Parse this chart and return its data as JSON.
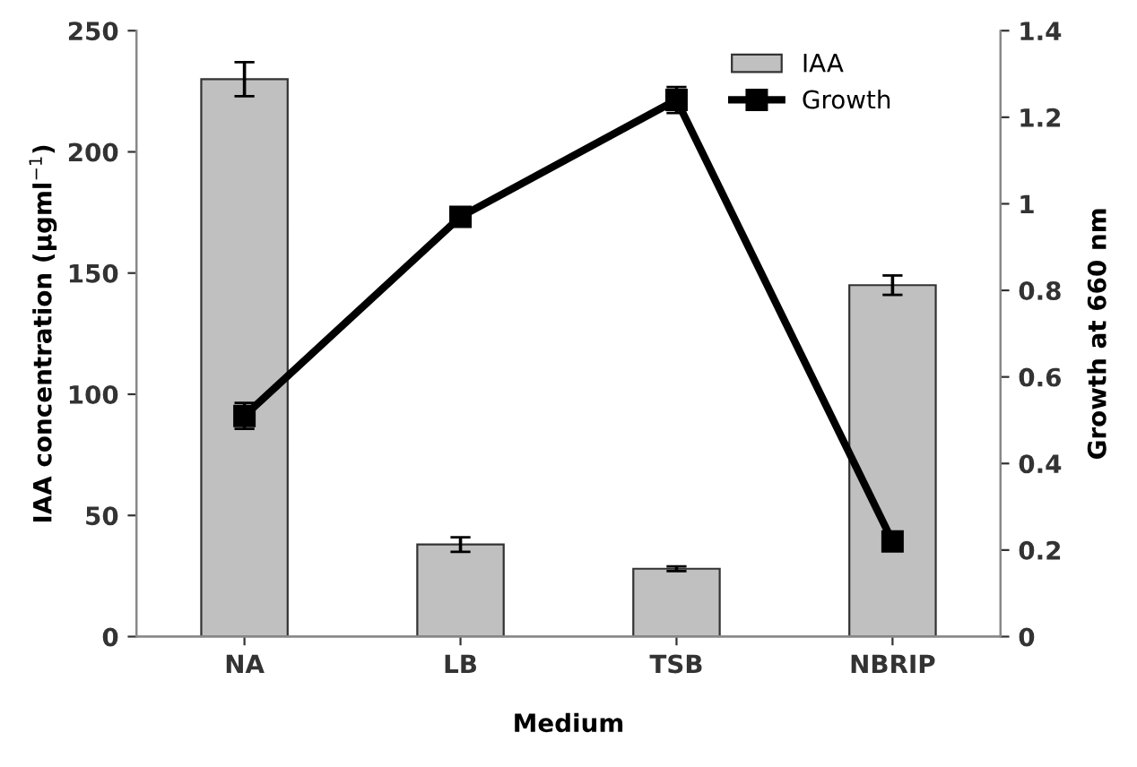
{
  "chart_data": {
    "type": "bar",
    "xlabel": "Medium",
    "ylabel": "IAA concentration (µgml$^{−1}$)",
    "y2label": "Growth at 660 nm",
    "categories": [
      "NA",
      "LB",
      "TSB",
      "NBRIP"
    ],
    "series": [
      {
        "name": "IAA",
        "color": "#c0c0c0",
        "values": [
          230,
          38,
          28,
          145
        ],
        "errors": [
          7,
          3,
          1,
          4
        ]
      },
      {
        "name": "Growth",
        "type": "line",
        "axis": "y2",
        "color": "#000000",
        "marker": "square",
        "line_style": "solid",
        "values": [
          0.51,
          0.97,
          1.24,
          0.22
        ],
        "errors": [
          0.03,
          null,
          0.03,
          null
        ]
      }
    ],
    "ylim": [
      0,
      250
    ],
    "yticks": [
      0,
      50,
      100,
      150,
      200,
      250
    ],
    "y2lim": [
      0,
      1.4
    ],
    "y2ticks": [
      0,
      0.2,
      0.4,
      0.6,
      0.8,
      1,
      1.2,
      1.4
    ],
    "legend": "top right",
    "grid": false
  }
}
